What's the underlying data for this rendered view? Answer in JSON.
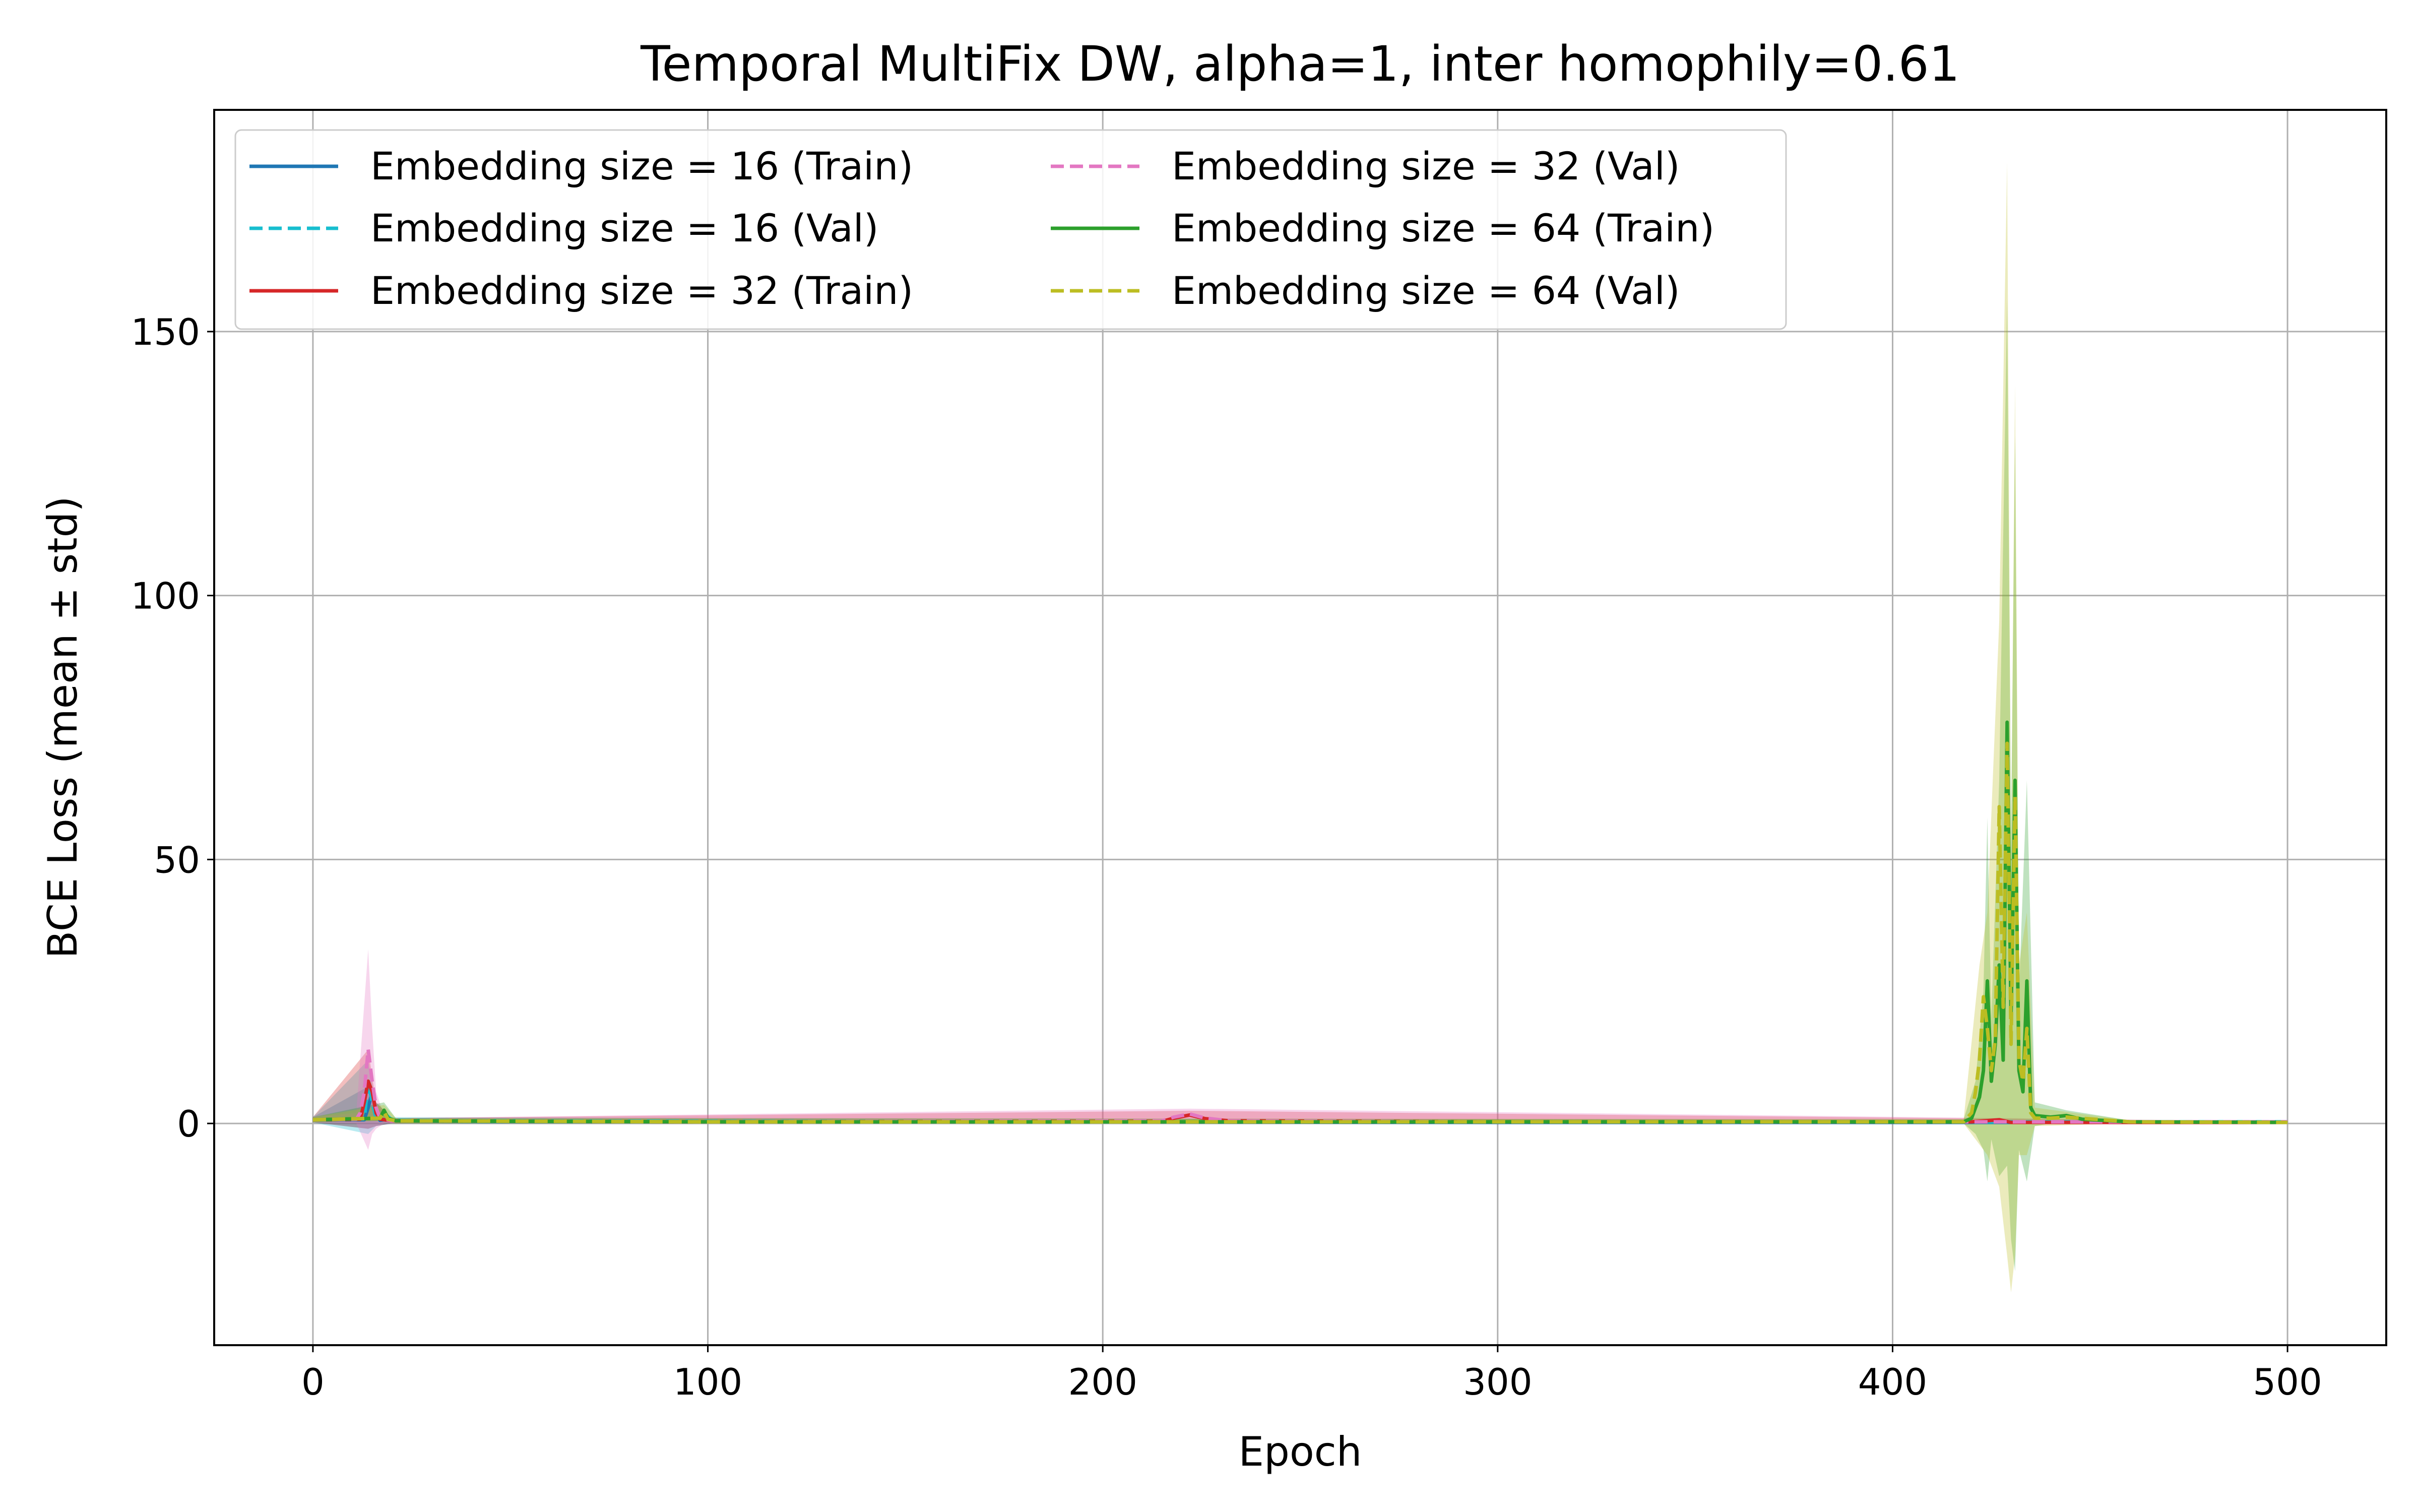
{
  "chart_data": {
    "type": "line",
    "title": "Temporal MultiFix DW, alpha=1, inter homophily=0.61",
    "xlabel": "Epoch",
    "ylabel": "BCE Loss (mean ± std)",
    "xlim": [
      -25,
      525
    ],
    "ylim": [
      -42,
      192
    ],
    "xticks": [
      0,
      100,
      200,
      300,
      400,
      500
    ],
    "yticks": [
      0,
      50,
      100,
      150
    ],
    "grid": true,
    "legend": {
      "placement": "top-left",
      "columns": 2
    },
    "series": [
      {
        "name": "Embedding size = 16 (Train)",
        "color": "#1f77b4",
        "dash": "solid",
        "points": [
          [
            0,
            0.7
          ],
          [
            13,
            0.7
          ],
          [
            14,
            3
          ],
          [
            15,
            6
          ],
          [
            16,
            2
          ],
          [
            17,
            0.6
          ],
          [
            19,
            0.8
          ],
          [
            21,
            0.5
          ],
          [
            40,
            0.4
          ],
          [
            100,
            0.3
          ],
          [
            200,
            0.3
          ],
          [
            300,
            0.2
          ],
          [
            400,
            0.2
          ],
          [
            500,
            0.2
          ]
        ],
        "band": [
          [
            0,
            0.2,
            1.2
          ],
          [
            14,
            -1,
            7
          ],
          [
            16,
            -0.5,
            4
          ],
          [
            20,
            0,
            1
          ],
          [
            500,
            0,
            0.4
          ]
        ]
      },
      {
        "name": "Embedding size = 16 (Val)",
        "color": "#17becf",
        "dash": "dashed",
        "points": [
          [
            0,
            0.7
          ],
          [
            13,
            0.9
          ],
          [
            14,
            8
          ],
          [
            15,
            4
          ],
          [
            16,
            1
          ],
          [
            18,
            2
          ],
          [
            20,
            0.6
          ],
          [
            40,
            0.5
          ],
          [
            100,
            0.4
          ],
          [
            200,
            0.3
          ],
          [
            300,
            0.3
          ],
          [
            400,
            0.3
          ],
          [
            500,
            0.3
          ]
        ],
        "band": [
          [
            0,
            0.2,
            1.2
          ],
          [
            14,
            -2,
            12
          ],
          [
            16,
            -0.5,
            3
          ],
          [
            20,
            0,
            1.2
          ],
          [
            500,
            0,
            0.5
          ]
        ]
      },
      {
        "name": "Embedding size = 32 (Train)",
        "color": "#d62728",
        "dash": "solid",
        "points": [
          [
            0,
            0.7
          ],
          [
            12,
            0.8
          ],
          [
            13,
            4
          ],
          [
            14,
            8
          ],
          [
            15,
            6
          ],
          [
            16,
            2
          ],
          [
            17,
            0.8
          ],
          [
            20,
            0.5
          ],
          [
            100,
            0.3
          ],
          [
            215,
            0.4
          ],
          [
            218,
            1
          ],
          [
            222,
            1.6
          ],
          [
            226,
            0.9
          ],
          [
            232,
            0.5
          ],
          [
            300,
            0.3
          ],
          [
            420,
            0.3
          ],
          [
            427,
            0.7
          ],
          [
            430,
            0.2
          ],
          [
            500,
            0.2
          ]
        ],
        "band": [
          [
            0,
            0.2,
            1.2
          ],
          [
            14,
            -1,
            14
          ],
          [
            16,
            -0.5,
            4
          ],
          [
            20,
            0,
            1
          ],
          [
            222,
            0.6,
            2.4
          ],
          [
            500,
            0,
            0.4
          ]
        ]
      },
      {
        "name": "Embedding size = 32 (Val)",
        "color": "#e377c2",
        "dash": "dashed",
        "points": [
          [
            0,
            0.7
          ],
          [
            11,
            0.8
          ],
          [
            12,
            2
          ],
          [
            13,
            6
          ],
          [
            14,
            14
          ],
          [
            15,
            8
          ],
          [
            16,
            3
          ],
          [
            17,
            1
          ],
          [
            20,
            0.5
          ],
          [
            100,
            0.3
          ],
          [
            215,
            0.5
          ],
          [
            218,
            1.2
          ],
          [
            222,
            1.8
          ],
          [
            226,
            1
          ],
          [
            232,
            0.5
          ],
          [
            300,
            0.3
          ],
          [
            500,
            0.3
          ]
        ],
        "band": [
          [
            0,
            0.2,
            1.2
          ],
          [
            11,
            0,
            2
          ],
          [
            14,
            -5,
            33
          ],
          [
            15,
            -2,
            18
          ],
          [
            16,
            -1,
            6
          ],
          [
            18,
            0,
            1.5
          ],
          [
            20,
            0,
            1
          ],
          [
            222,
            0.8,
            2.8
          ],
          [
            500,
            0,
            0.4
          ]
        ]
      },
      {
        "name": "Embedding size = 64 (Train)",
        "color": "#2ca02c",
        "dash": "solid",
        "points": [
          [
            0,
            0.7
          ],
          [
            17,
            1
          ],
          [
            18,
            2.5
          ],
          [
            19,
            1
          ],
          [
            21,
            0.5
          ],
          [
            100,
            0.3
          ],
          [
            300,
            0.3
          ],
          [
            418,
            0.3
          ],
          [
            420,
            1
          ],
          [
            421,
            3
          ],
          [
            422,
            5
          ],
          [
            423,
            10
          ],
          [
            424,
            27
          ],
          [
            425,
            8
          ],
          [
            426,
            15
          ],
          [
            427,
            30
          ],
          [
            428,
            12
          ],
          [
            429,
            76
          ],
          [
            430,
            20
          ],
          [
            431,
            65
          ],
          [
            432,
            10
          ],
          [
            433,
            6
          ],
          [
            434,
            27
          ],
          [
            435,
            3
          ],
          [
            436,
            1.5
          ],
          [
            440,
            1.2
          ],
          [
            444,
            1.5
          ],
          [
            448,
            0.8
          ],
          [
            460,
            0.3
          ],
          [
            500,
            0.2
          ]
        ],
        "band": [
          [
            0,
            0.2,
            1.2
          ],
          [
            18,
            0.5,
            4
          ],
          [
            21,
            0,
            1
          ],
          [
            418,
            0,
            0.8
          ],
          [
            421,
            -2,
            8
          ],
          [
            423,
            -5,
            25
          ],
          [
            424,
            -11,
            58
          ],
          [
            425,
            -3,
            20
          ],
          [
            427,
            -10,
            65
          ],
          [
            429,
            -8,
            156
          ],
          [
            430,
            -22,
            55
          ],
          [
            431,
            -28,
            130
          ],
          [
            432,
            -5,
            25
          ],
          [
            434,
            -11,
            65
          ],
          [
            436,
            -0.5,
            4
          ],
          [
            444,
            0.5,
            2.5
          ],
          [
            460,
            0,
            0.6
          ],
          [
            500,
            0,
            0.4
          ]
        ]
      },
      {
        "name": "Embedding size = 64 (Val)",
        "color": "#bcbd22",
        "dash": "dashed",
        "points": [
          [
            0,
            0.7
          ],
          [
            17,
            1
          ],
          [
            18,
            2.2
          ],
          [
            19,
            0.8
          ],
          [
            21,
            0.5
          ],
          [
            100,
            0.3
          ],
          [
            300,
            0.3
          ],
          [
            418,
            0.3
          ],
          [
            420,
            2
          ],
          [
            421,
            6
          ],
          [
            422,
            12
          ],
          [
            423,
            24
          ],
          [
            424,
            18
          ],
          [
            425,
            10
          ],
          [
            426,
            16
          ],
          [
            427,
            60
          ],
          [
            428,
            22
          ],
          [
            429,
            72
          ],
          [
            430,
            15
          ],
          [
            431,
            62
          ],
          [
            432,
            12
          ],
          [
            433,
            8
          ],
          [
            434,
            18
          ],
          [
            435,
            2
          ],
          [
            436,
            1
          ],
          [
            440,
            1
          ],
          [
            444,
            1.2
          ],
          [
            460,
            0.3
          ],
          [
            500,
            0.2
          ]
        ],
        "band": [
          [
            0,
            0.2,
            1.2
          ],
          [
            18,
            0.5,
            3.5
          ],
          [
            21,
            0,
            1
          ],
          [
            418,
            0,
            0.8
          ],
          [
            422,
            -4,
            30
          ],
          [
            424,
            -6,
            40
          ],
          [
            427,
            -12,
            95
          ],
          [
            429,
            -25,
            182
          ],
          [
            430,
            -32,
            50
          ],
          [
            431,
            -25,
            140
          ],
          [
            432,
            -6,
            30
          ],
          [
            434,
            -6,
            40
          ],
          [
            436,
            -0.5,
            3
          ],
          [
            460,
            0,
            0.6
          ],
          [
            500,
            0,
            0.4
          ]
        ]
      }
    ]
  }
}
